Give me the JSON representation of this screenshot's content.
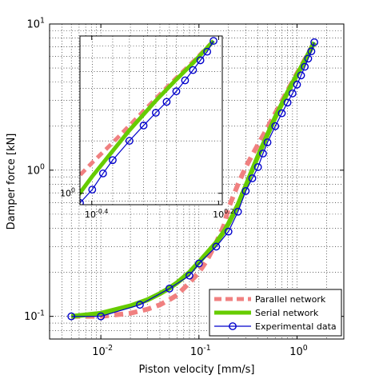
{
  "chart_data": {
    "type": "line",
    "xscale": "log",
    "yscale": "log",
    "xlabel": "Piston velocity [mm/s]",
    "ylabel": "Damper force [kN]",
    "xlim": [
      0.003,
      3
    ],
    "ylim": [
      0.07,
      10
    ],
    "grid": true,
    "legend_position": "bottom-right",
    "x_ticks": [
      {
        "value": 0.01,
        "base": "10",
        "exp": "-2"
      },
      {
        "value": 0.1,
        "base": "10",
        "exp": "-1"
      },
      {
        "value": 1,
        "base": "10",
        "exp": "0"
      }
    ],
    "y_ticks": [
      {
        "value": 0.1,
        "base": "10",
        "exp": "-1"
      },
      {
        "value": 1,
        "base": "10",
        "exp": "0"
      },
      {
        "value": 10,
        "base": "10",
        "exp": "1"
      }
    ],
    "series": [
      {
        "name": "Parallel network",
        "style": "dashed",
        "color": "#f08080",
        "x": [
          0.005,
          0.01,
          0.02,
          0.03,
          0.04,
          0.05,
          0.06,
          0.08,
          0.1,
          0.12,
          0.15,
          0.18,
          0.2,
          0.25,
          0.3,
          0.4,
          0.5,
          0.6,
          0.8,
          1.0,
          1.2,
          1.5
        ],
        "y": [
          0.1,
          0.1,
          0.105,
          0.112,
          0.12,
          0.13,
          0.14,
          0.17,
          0.2,
          0.24,
          0.32,
          0.42,
          0.55,
          0.8,
          1.05,
          1.5,
          1.95,
          2.45,
          3.5,
          4.6,
          5.7,
          7.5
        ]
      },
      {
        "name": "Serial network",
        "style": "solid",
        "color": "#66cc00",
        "x": [
          0.005,
          0.01,
          0.02,
          0.03,
          0.04,
          0.05,
          0.06,
          0.08,
          0.1,
          0.12,
          0.15,
          0.18,
          0.2,
          0.25,
          0.3,
          0.4,
          0.5,
          0.6,
          0.8,
          1.0,
          1.2,
          1.5
        ],
        "y": [
          0.1,
          0.105,
          0.118,
          0.13,
          0.143,
          0.156,
          0.17,
          0.2,
          0.235,
          0.27,
          0.32,
          0.38,
          0.43,
          0.58,
          0.78,
          1.25,
          1.75,
          2.3,
          3.4,
          4.5,
          5.6,
          7.5
        ]
      },
      {
        "name": "Experimental data",
        "style": "line-circles",
        "color": "#0000cc",
        "x": [
          0.005,
          0.01,
          0.025,
          0.05,
          0.08,
          0.1,
          0.15,
          0.2,
          0.25,
          0.3,
          0.35,
          0.4,
          0.45,
          0.5,
          0.6,
          0.7,
          0.8,
          0.9,
          1.0,
          1.1,
          1.2,
          1.3,
          1.4,
          1.5
        ],
        "y": [
          0.1,
          0.1,
          0.12,
          0.155,
          0.19,
          0.23,
          0.3,
          0.38,
          0.52,
          0.72,
          0.88,
          1.05,
          1.3,
          1.55,
          2.0,
          2.45,
          2.9,
          3.35,
          3.85,
          4.45,
          5.1,
          5.8,
          6.5,
          7.5
        ]
      }
    ],
    "inset": {
      "xlim": [
        0.35,
        1.65
      ],
      "ylim": [
        0.86,
        8.0
      ],
      "grid": true,
      "x_ticks": [
        {
          "value": 0.398,
          "base": "10",
          "exp": "-0.4"
        },
        {
          "value": 1.585,
          "base": "10",
          "exp": "0.2"
        }
      ],
      "y_ticks": [
        {
          "value": 1,
          "base": "10",
          "exp": "0"
        }
      ]
    }
  }
}
